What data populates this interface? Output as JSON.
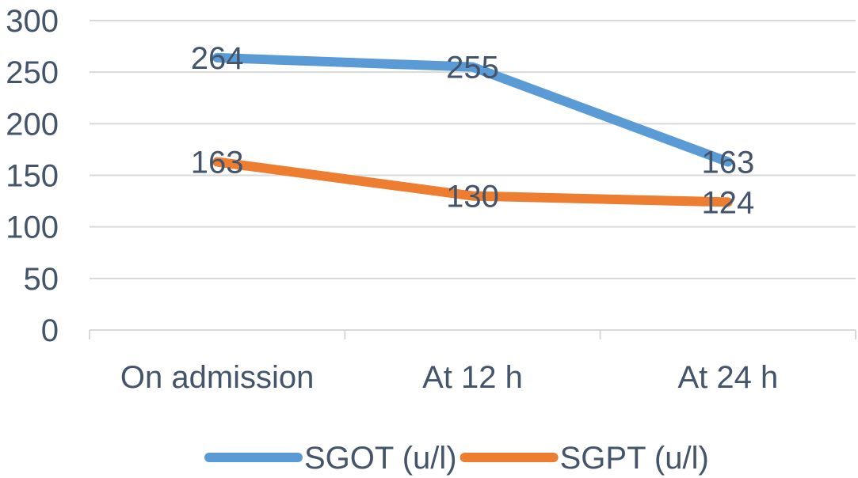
{
  "chart_data": {
    "type": "line",
    "title": "",
    "xlabel": "",
    "ylabel": "",
    "categories": [
      "On admission",
      "At 12 h",
      "At 24 h"
    ],
    "ylim": [
      0,
      300
    ],
    "yticks": [
      0,
      50,
      100,
      150,
      200,
      250,
      300
    ],
    "grid": true,
    "legend_position": "bottom",
    "series": [
      {
        "name": "SGOT (u/l)",
        "values": [
          264,
          255,
          163
        ],
        "color": "#5b9bd5"
      },
      {
        "name": "SGPT (u/l)",
        "values": [
          163,
          130,
          124
        ],
        "color": "#ed7d31"
      }
    ],
    "gridline_color": "#d9d9d9",
    "text_color": "#44546a"
  }
}
